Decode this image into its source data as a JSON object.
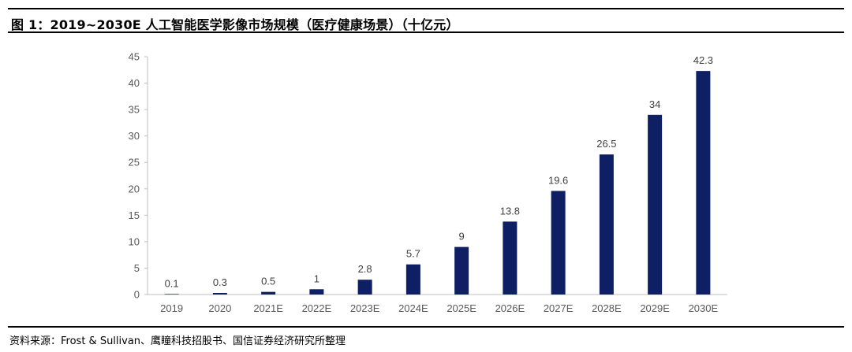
{
  "header": {
    "figure_title": "图 1：2019~2030E 人工智能医学影像市场规模（医疗健康场景）（十亿元）"
  },
  "footer": {
    "source_text": "资料来源：Frost & Sullivan、鹰瞳科技招股书、国信证券经济研究所整理"
  },
  "chart_data": {
    "type": "bar",
    "title": "图 1：2019~2030E 人工智能医学影像市场规模（医疗健康场景）（十亿元）",
    "xlabel": "",
    "ylabel": "",
    "categories": [
      "2019",
      "2020",
      "2021E",
      "2022E",
      "2023E",
      "2024E",
      "2025E",
      "2026E",
      "2027E",
      "2028E",
      "2029E",
      "2030E"
    ],
    "values": [
      0.1,
      0.3,
      0.5,
      1,
      2.8,
      5.7,
      9,
      13.8,
      19.6,
      26.5,
      34,
      42.3
    ],
    "value_labels": [
      "0.1",
      "0.3",
      "0.5",
      "1",
      "2.8",
      "5.7",
      "9",
      "13.8",
      "19.6",
      "26.5",
      "34",
      "42.3"
    ],
    "ylim": [
      0,
      45
    ],
    "yticks": [
      0,
      5,
      10,
      15,
      20,
      25,
      30,
      35,
      40,
      45
    ],
    "grid": false,
    "legend": "none",
    "bar_color": "#0f1f63"
  }
}
